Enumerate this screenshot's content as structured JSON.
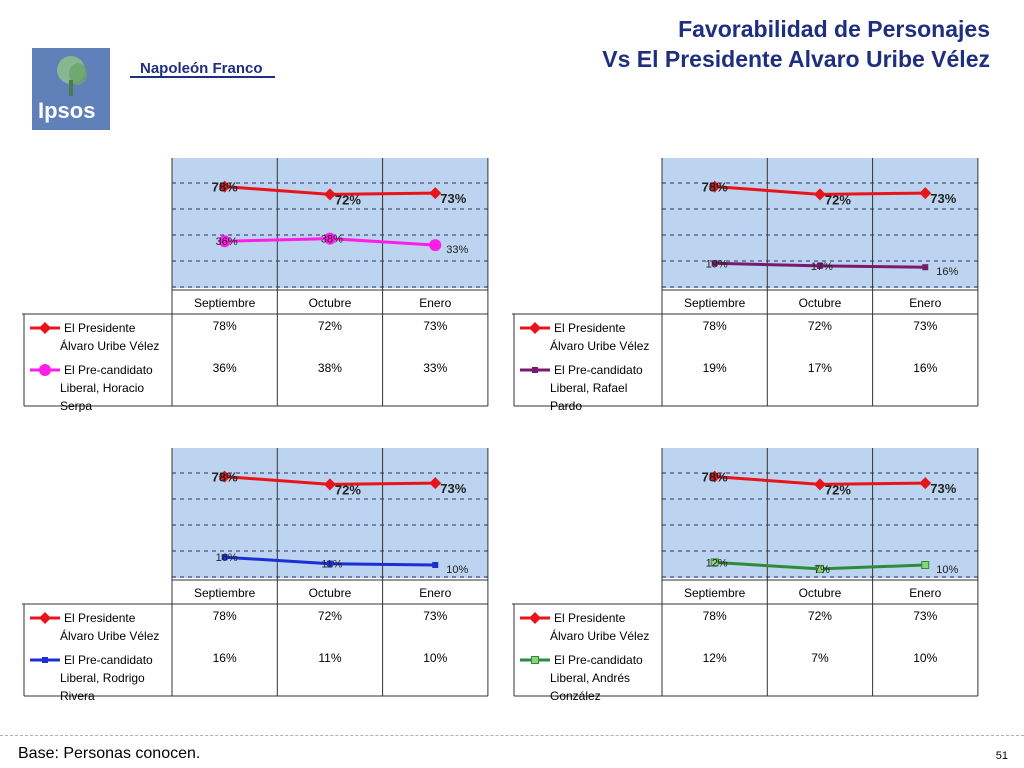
{
  "header": {
    "title_line1": "Favorabilidad de Personajes",
    "title_line2": "Vs El Presidente Alvaro Uribe Vélez",
    "logo_text": "Ipsos",
    "brand": "Napoleón Franco"
  },
  "footer": {
    "base_note": "Base: Personas conocen.",
    "page_number": "51"
  },
  "colors": {
    "plot_bg": "#bcd4ef",
    "title": "#1f2f80",
    "logo_bg": "#5f80b8"
  },
  "chart_data": [
    {
      "type": "line",
      "categories": [
        "Septiembre",
        "Octubre",
        "Enero"
      ],
      "ylim": [
        0,
        100
      ],
      "series": [
        {
          "name": "El Presidente Álvaro Uribe Vélez",
          "name_lines": [
            "El Presidente",
            "Álvaro Uribe Vélez"
          ],
          "values": [
            78,
            72,
            73
          ],
          "labels": [
            "78%",
            "72%",
            "73%"
          ],
          "table": [
            "78%",
            "72%",
            "73%"
          ],
          "color": "#e8141a",
          "marker": "diamond"
        },
        {
          "name": "El Pre-candidato Liberal, Horacio Serpa",
          "name_lines": [
            "El Pre-candidato",
            "Liberal, Horacio",
            "Serpa"
          ],
          "values": [
            36,
            38,
            33
          ],
          "labels": [
            "36%",
            "38%",
            "33%"
          ],
          "table": [
            "36%",
            "38%",
            "33%"
          ],
          "color": "#ff1ee8",
          "marker": "circle"
        }
      ]
    },
    {
      "type": "line",
      "categories": [
        "Septiembre",
        "Octubre",
        "Enero"
      ],
      "ylim": [
        0,
        100
      ],
      "series": [
        {
          "name": "El Presidente Álvaro Uribe Vélez",
          "name_lines": [
            "El Presidente",
            "Álvaro Uribe Vélez"
          ],
          "values": [
            78,
            72,
            73
          ],
          "labels": [
            "78%",
            "72%",
            "73%"
          ],
          "table": [
            "78%",
            "72%",
            "73%"
          ],
          "color": "#e8141a",
          "marker": "diamond"
        },
        {
          "name": "El Pre-candidato Liberal, Rafael Pardo",
          "name_lines": [
            "El Pre-candidato",
            "Liberal, Rafael",
            "Pardo"
          ],
          "values": [
            19,
            17,
            16
          ],
          "labels": [
            "19%",
            "17%",
            "16%"
          ],
          "table": [
            "19%",
            "17%",
            "16%"
          ],
          "color": "#7a1a6e",
          "marker": "square"
        }
      ]
    },
    {
      "type": "line",
      "categories": [
        "Septiembre",
        "Octubre",
        "Enero"
      ],
      "ylim": [
        0,
        100
      ],
      "series": [
        {
          "name": "El Presidente Álvaro Uribe Vélez",
          "name_lines": [
            "El Presidente",
            "Álvaro Uribe Vélez"
          ],
          "values": [
            78,
            72,
            73
          ],
          "labels": [
            "78%",
            "72%",
            "73%"
          ],
          "table": [
            "78%",
            "72%",
            "73%"
          ],
          "color": "#e8141a",
          "marker": "diamond"
        },
        {
          "name": "El Pre-candidato Liberal, Rodrigo Rivera",
          "name_lines": [
            "El Pre-candidato",
            "Liberal, Rodrigo",
            "Rivera"
          ],
          "values": [
            16,
            11,
            10
          ],
          "labels": [
            "16%",
            "11%",
            "10%"
          ],
          "table": [
            "16%",
            "11%",
            "10%"
          ],
          "color": "#1a2fd6",
          "marker": "square"
        }
      ]
    },
    {
      "type": "line",
      "categories": [
        "Septiembre",
        "Octubre",
        "Enero"
      ],
      "ylim": [
        0,
        100
      ],
      "series": [
        {
          "name": "El Presidente Álvaro Uribe Vélez",
          "name_lines": [
            "El Presidente",
            "Álvaro Uribe Vélez"
          ],
          "values": [
            78,
            72,
            73
          ],
          "labels": [
            "78%",
            "72%",
            "73%"
          ],
          "table": [
            "78%",
            "72%",
            "73%"
          ],
          "color": "#e8141a",
          "marker": "diamond"
        },
        {
          "name": "El Pre-candidato Liberal, Andrés González",
          "name_lines": [
            "El Pre-candidato",
            "Liberal, Andrés",
            "González"
          ],
          "values": [
            12,
            7,
            10
          ],
          "labels": [
            "12%",
            "7%",
            "10%"
          ],
          "table": [
            "12%",
            "7%",
            "10%"
          ],
          "color": "#2e8b3a",
          "marker": "square-open"
        }
      ]
    }
  ]
}
